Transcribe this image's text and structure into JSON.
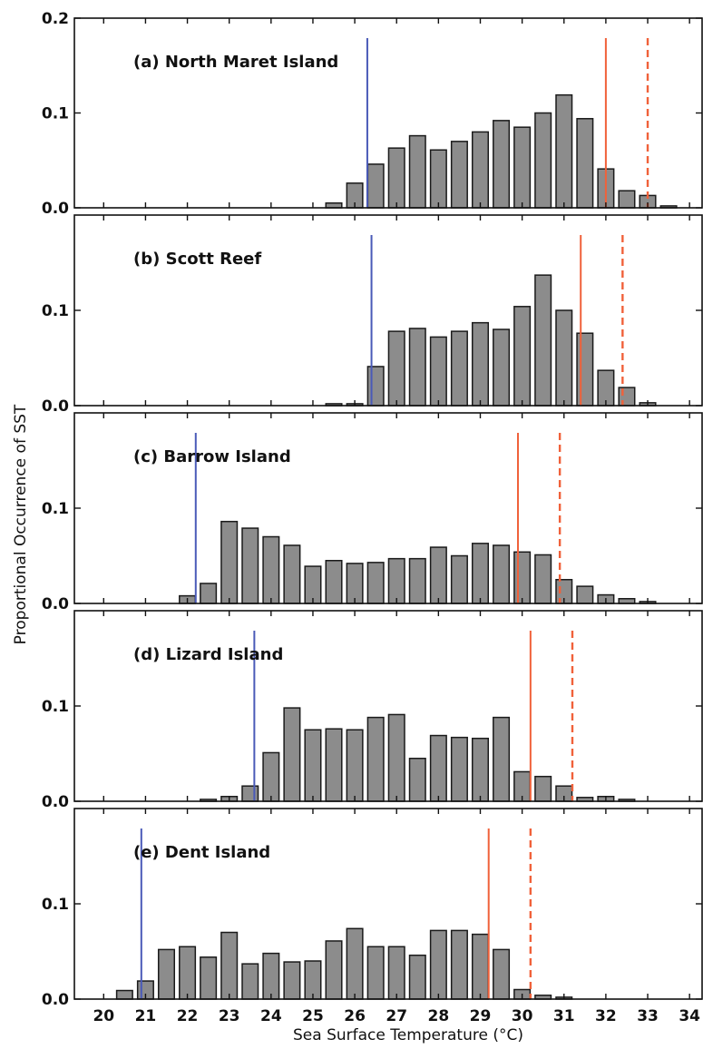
{
  "chart_data": {
    "type": "bar",
    "xlabel": "Sea Surface Temperature (°C)",
    "ylabel": "Proportional Occurrence of SST",
    "xlim": [
      19.3,
      34.3
    ],
    "x_ticks": [
      20,
      21,
      22,
      23,
      24,
      25,
      26,
      27,
      28,
      29,
      30,
      31,
      32,
      33,
      34
    ],
    "bin_width": 0.5,
    "colors": {
      "bar": "#8c8c8c",
      "blue_line": "#4a5ab8",
      "red_line": "#f0613a"
    },
    "panels": [
      {
        "title": "(a) North Maret Island",
        "ylim": [
          0,
          0.2
        ],
        "y_ticks": [
          0.0,
          0.1,
          0.2
        ],
        "y_tick_labels": [
          "0.0",
          "0.1",
          "0.2"
        ],
        "blue_line": 26.3,
        "red_solid_line": 32.0,
        "red_dashed_line": 33.0,
        "x": [
          25.5,
          26.0,
          26.5,
          27.0,
          27.5,
          28.0,
          28.5,
          29.0,
          29.5,
          30.0,
          30.5,
          31.0,
          31.5,
          32.0,
          32.5,
          33.0,
          33.5
        ],
        "values": [
          0.005,
          0.026,
          0.046,
          0.063,
          0.076,
          0.061,
          0.07,
          0.08,
          0.092,
          0.085,
          0.1,
          0.119,
          0.094,
          0.041,
          0.018,
          0.013,
          0.002
        ]
      },
      {
        "title": "(b) Scott Reef",
        "ylim": [
          0,
          0.2
        ],
        "y_ticks": [
          0.0,
          0.1
        ],
        "y_tick_labels": [
          "0.0",
          "0.1"
        ],
        "blue_line": 26.4,
        "red_solid_line": 31.4,
        "red_dashed_line": 32.4,
        "x": [
          25.5,
          26.0,
          26.5,
          27.0,
          27.5,
          28.0,
          28.5,
          29.0,
          29.5,
          30.0,
          30.5,
          31.0,
          31.5,
          32.0,
          32.5,
          33.0
        ],
        "values": [
          0.002,
          0.002,
          0.041,
          0.078,
          0.081,
          0.072,
          0.078,
          0.087,
          0.08,
          0.104,
          0.137,
          0.1,
          0.076,
          0.037,
          0.019,
          0.003
        ]
      },
      {
        "title": "(c) Barrow Island",
        "ylim": [
          0,
          0.2
        ],
        "y_ticks": [
          0.0,
          0.1
        ],
        "y_tick_labels": [
          "0.0",
          "0.1"
        ],
        "blue_line": 22.2,
        "red_solid_line": 29.9,
        "red_dashed_line": 30.9,
        "x": [
          22.0,
          22.5,
          23.0,
          23.5,
          24.0,
          24.5,
          25.0,
          25.5,
          26.0,
          26.5,
          27.0,
          27.5,
          28.0,
          28.5,
          29.0,
          29.5,
          30.0,
          30.5,
          31.0,
          31.5,
          32.0,
          32.5,
          33.0
        ],
        "values": [
          0.008,
          0.021,
          0.086,
          0.079,
          0.07,
          0.061,
          0.039,
          0.045,
          0.042,
          0.043,
          0.047,
          0.047,
          0.059,
          0.05,
          0.063,
          0.061,
          0.054,
          0.051,
          0.025,
          0.018,
          0.009,
          0.005,
          0.002
        ]
      },
      {
        "title": "(d) Lizard Island",
        "ylim": [
          0,
          0.2
        ],
        "y_ticks": [
          0.0,
          0.1
        ],
        "y_tick_labels": [
          "0.0",
          "0.1"
        ],
        "blue_line": 23.6,
        "red_solid_line": 30.2,
        "red_dashed_line": 31.2,
        "x": [
          22.5,
          23.0,
          23.5,
          24.0,
          24.5,
          25.0,
          25.5,
          26.0,
          26.5,
          27.0,
          27.5,
          28.0,
          28.5,
          29.0,
          29.5,
          30.0,
          30.5,
          31.0,
          31.5,
          32.0,
          32.5
        ],
        "values": [
          0.002,
          0.005,
          0.016,
          0.051,
          0.098,
          0.075,
          0.076,
          0.075,
          0.088,
          0.091,
          0.045,
          0.069,
          0.067,
          0.066,
          0.088,
          0.031,
          0.026,
          0.016,
          0.004,
          0.005,
          0.002
        ]
      },
      {
        "title": "(e) Dent Island",
        "ylim": [
          0,
          0.2
        ],
        "y_ticks": [
          0.0,
          0.1
        ],
        "y_tick_labels": [
          "0.0",
          "0.1"
        ],
        "blue_line": 20.9,
        "red_solid_line": 29.2,
        "red_dashed_line": 30.2,
        "x": [
          20.5,
          21.0,
          21.5,
          22.0,
          22.5,
          23.0,
          23.5,
          24.0,
          24.5,
          25.0,
          25.5,
          26.0,
          26.5,
          27.0,
          27.5,
          28.0,
          28.5,
          29.0,
          29.5,
          30.0,
          30.5,
          31.0
        ],
        "values": [
          0.009,
          0.019,
          0.052,
          0.055,
          0.044,
          0.07,
          0.037,
          0.048,
          0.039,
          0.04,
          0.061,
          0.074,
          0.055,
          0.055,
          0.046,
          0.072,
          0.072,
          0.068,
          0.052,
          0.01,
          0.004,
          0.002
        ]
      }
    ]
  }
}
